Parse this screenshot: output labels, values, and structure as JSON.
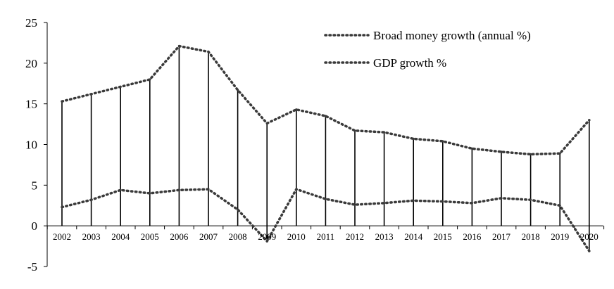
{
  "chart_data": {
    "type": "line",
    "title": "",
    "xlabel": "",
    "ylabel": "",
    "ylim": [
      -5,
      25
    ],
    "yticks": [
      -5,
      0,
      5,
      10,
      15,
      20,
      25
    ],
    "grid": false,
    "legend_position": "top-right",
    "categories": [
      "2002",
      "2003",
      "2004",
      "2005",
      "2006",
      "2007",
      "2008",
      "2009",
      "2010",
      "2011",
      "2012",
      "2013",
      "2014",
      "2015",
      "2016",
      "2017",
      "2018",
      "2019",
      "2020"
    ],
    "series": [
      {
        "name": "Broad money growth (annual %)",
        "line_style": "dotted",
        "color": "#3a3a3a",
        "values": [
          15.3,
          16.2,
          17.1,
          18.0,
          22.1,
          21.4,
          16.7,
          12.6,
          14.3,
          13.5,
          11.7,
          11.5,
          10.7,
          10.4,
          9.5,
          9.1,
          8.8,
          8.9,
          13.0
        ]
      },
      {
        "name": "GDP growth %",
        "line_style": "dotted",
        "color": "#3a3a3a",
        "values": [
          2.3,
          3.2,
          4.4,
          4.0,
          4.4,
          4.5,
          2.0,
          -1.9,
          4.5,
          3.3,
          2.6,
          2.8,
          3.1,
          3.0,
          2.8,
          3.4,
          3.2,
          2.5,
          -3.1
        ]
      }
    ],
    "drop_lines": true
  }
}
